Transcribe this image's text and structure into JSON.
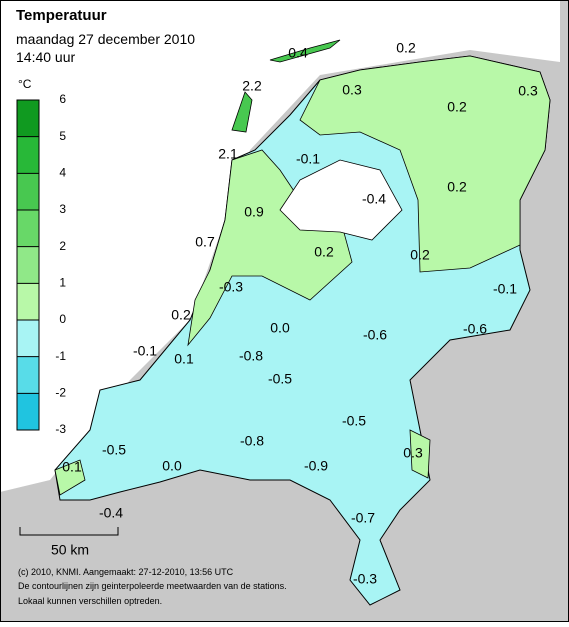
{
  "header": {
    "title": "Temperatuur",
    "date": "maandag 27 december 2010",
    "time": "14:40 uur"
  },
  "legend": {
    "unit": "°C",
    "ticks": [
      6,
      5,
      4,
      3,
      2,
      1,
      0,
      -1,
      -2,
      -3
    ],
    "colors": [
      "#109a20",
      "#28b838",
      "#48c850",
      "#68d868",
      "#90e888",
      "#b8f8a8",
      "#a8f4f4",
      "#58dce8",
      "#20c4e0"
    ]
  },
  "map": {
    "labels": [
      "0.4",
      "0.2",
      "2.2",
      "0.3",
      "0.2",
      "0.3",
      "2.1",
      "-0.1",
      "0.2",
      "-0.4",
      "0.9",
      "0.7",
      "0.2",
      "0.2",
      "-0.1",
      "-0.3",
      "0.2",
      "0.0",
      "-0.6",
      "-0.6",
      "-0.1",
      "0.1",
      "-0.8",
      "-0.5",
      "-0.5",
      "-0.8",
      "-0.5",
      "0.3",
      "0.1",
      "0.0",
      "-0.9",
      "-0.4",
      "-0.7",
      "-0.3"
    ]
  },
  "scale": "50 km",
  "footer": [
    "(c) 2010, KNMI. Aangemaakt: 27-12-2010, 13:56 UTC",
    "De contourlijnen zijn geinterpoleerde meetwaarden van de stations.",
    "Lokaal kunnen verschillen optreden."
  ]
}
